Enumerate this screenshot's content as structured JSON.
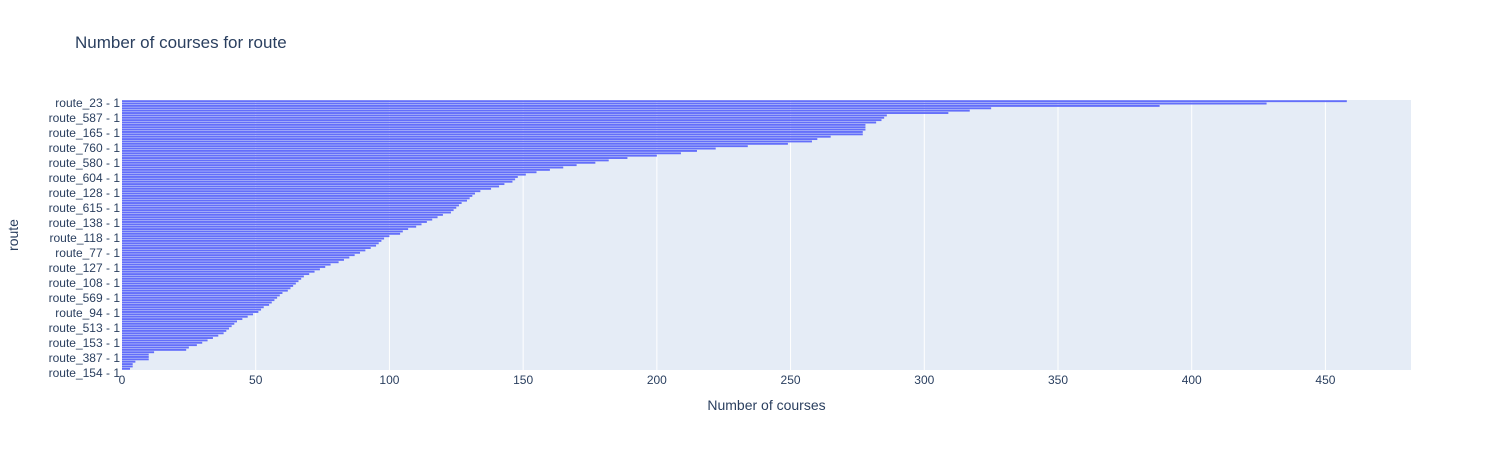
{
  "chart_data": {
    "type": "bar",
    "orientation": "horizontal",
    "title": "Number of courses for route",
    "xlabel": "Number of courses",
    "ylabel": "route",
    "xlim": [
      0,
      482
    ],
    "x_ticks": [
      0,
      50,
      100,
      150,
      200,
      250,
      300,
      350,
      400,
      450
    ],
    "grid": "x",
    "legend": "none",
    "colors": {
      "bar": "#636efa",
      "plot_bg": "#e5ecf6",
      "grid": "#ffffff",
      "text": "#2a3f5f"
    },
    "y_tick_labels": [
      "route_23 - 1",
      "route_587 - 1",
      "route_165 - 1",
      "route_760 - 1",
      "route_580 - 1",
      "route_604 - 1",
      "route_128 - 1",
      "route_615 - 1",
      "route_138 - 1",
      "route_118 - 1",
      "route_77 - 1",
      "route_127 - 1",
      "route_108 - 1",
      "route_569 - 1",
      "route_94 - 1",
      "route_513 - 1",
      "route_153 - 1",
      "route_387 - 1",
      "route_154 - 1"
    ],
    "values": [
      458,
      428,
      388,
      325,
      317,
      309,
      286,
      285,
      284,
      282,
      278,
      278,
      278,
      277,
      277,
      265,
      260,
      258,
      249,
      234,
      222,
      215,
      209,
      200,
      189,
      182,
      177,
      170,
      165,
      160,
      155,
      151,
      148,
      147,
      146,
      143,
      141,
      138,
      134,
      132,
      131,
      130,
      129,
      127,
      126,
      125,
      124,
      123,
      120,
      118,
      116,
      114,
      112,
      110,
      107,
      105,
      104,
      100,
      98,
      97,
      96,
      95,
      93,
      91,
      89,
      87,
      85,
      83,
      81,
      78,
      76,
      74,
      72,
      70,
      68,
      67,
      66,
      65,
      64,
      63,
      62,
      60,
      59,
      58,
      57,
      56,
      55,
      53,
      52,
      51,
      49,
      47,
      45,
      43,
      42,
      41,
      40,
      39,
      38,
      36,
      34,
      32,
      30,
      28,
      25,
      24,
      12,
      10,
      10,
      10,
      5,
      4,
      4,
      3
    ]
  }
}
